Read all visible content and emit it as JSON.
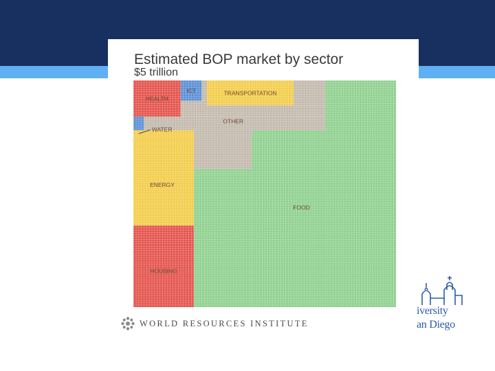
{
  "slide": {
    "footer_source": "WORLD RESOURCES INSTITUTE",
    "logo": {
      "line1": "iversity",
      "line2": "an Diego"
    }
  },
  "colors": {
    "background_band": "#17305f",
    "accent_band": "#5fb0f2",
    "food": "#8fd08f",
    "health": "#e4534c",
    "ict": "#5b8fd6",
    "transportation": "#f3cd4a",
    "other": "#c3b9ac",
    "water": "#5b8fd6",
    "energy": "#f3cd4a",
    "housing": "#e4534c"
  },
  "chart_data": {
    "type": "treemap",
    "title": "Estimated BOP market by sector",
    "subtitle": "$5 trillion",
    "total_trillion_usd": 5,
    "grid": "100 x 100 unit squares, each 0.01% of total",
    "sectors": [
      {
        "name": "FOOD",
        "share_pct": 57.4,
        "color_key": "food"
      },
      {
        "name": "ENERGY",
        "share_pct": 8.6,
        "color_key": "energy"
      },
      {
        "name": "HOUSING",
        "share_pct": 7.6,
        "color_key": "housing"
      },
      {
        "name": "OTHER",
        "share_pct": 12.1,
        "color_key": "other"
      },
      {
        "name": "TRANSPORTATION",
        "share_pct": 5.6,
        "color_key": "transportation"
      },
      {
        "name": "HEALTH",
        "share_pct": 5.2,
        "color_key": "health"
      },
      {
        "name": "ICT",
        "share_pct": 1.6,
        "color_key": "ict"
      },
      {
        "name": "WATER",
        "share_pct": 0.4,
        "color_key": "water"
      }
    ]
  }
}
